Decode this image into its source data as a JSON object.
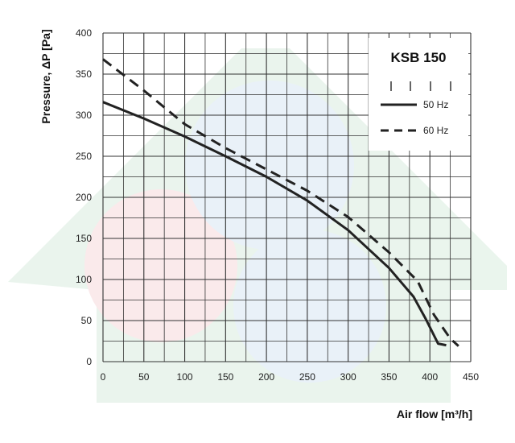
{
  "colors": {
    "grid": "#333333",
    "series": "#222222",
    "watermark_green": "#d9ecdf",
    "watermark_red": "#f6d9dc",
    "watermark_blue": "#d8e6f4"
  },
  "chart_data": {
    "type": "line",
    "title": "KSB 150",
    "xlabel": "Air flow [m³/h]",
    "ylabel": "Pressure, ΔP [Pa]",
    "xlim": [
      0,
      450
    ],
    "ylim": [
      0,
      400
    ],
    "x_ticks": [
      "0",
      "50",
      "100",
      "150",
      "200",
      "250",
      "300",
      "350",
      "400",
      "450"
    ],
    "y_ticks": [
      "0",
      "50",
      "100",
      "150",
      "200",
      "250",
      "300",
      "350",
      "400"
    ],
    "grid": true,
    "legend_position": "top-right",
    "series": [
      {
        "name": "50 Hz",
        "style": "solid",
        "x": [
          0,
          50,
          100,
          150,
          200,
          250,
          300,
          350,
          380,
          395,
          410,
          420
        ],
        "y": [
          316,
          296,
          274,
          250,
          225,
          196,
          160,
          114,
          79,
          52,
          22,
          20
        ]
      },
      {
        "name": "60 Hz",
        "style": "dashed",
        "x": [
          0,
          50,
          100,
          150,
          200,
          250,
          300,
          350,
          385,
          405,
          425,
          435
        ],
        "y": [
          368,
          330,
          289,
          260,
          234,
          208,
          176,
          133,
          98,
          57,
          28,
          19
        ]
      }
    ]
  }
}
